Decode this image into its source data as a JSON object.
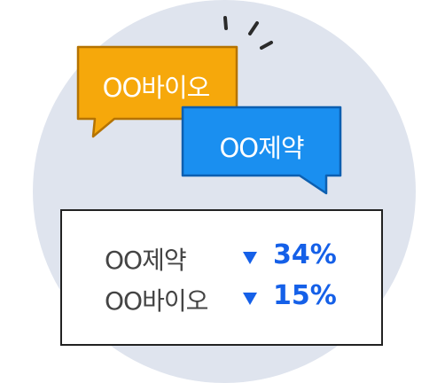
{
  "bubbles": {
    "bio": {
      "label": "OO바이오",
      "color": "#f6a80b"
    },
    "pharma": {
      "label": "OO제약",
      "color": "#1a8ff0"
    }
  },
  "stats": {
    "rows": [
      {
        "name": "OO제약",
        "direction": "down-triangle-icon",
        "value": "34%"
      },
      {
        "name": "OO바이오",
        "direction": "down-triangle-icon",
        "value": "15%"
      }
    ],
    "value_color": "#1560e8"
  },
  "background_color": "#dfe4ee"
}
